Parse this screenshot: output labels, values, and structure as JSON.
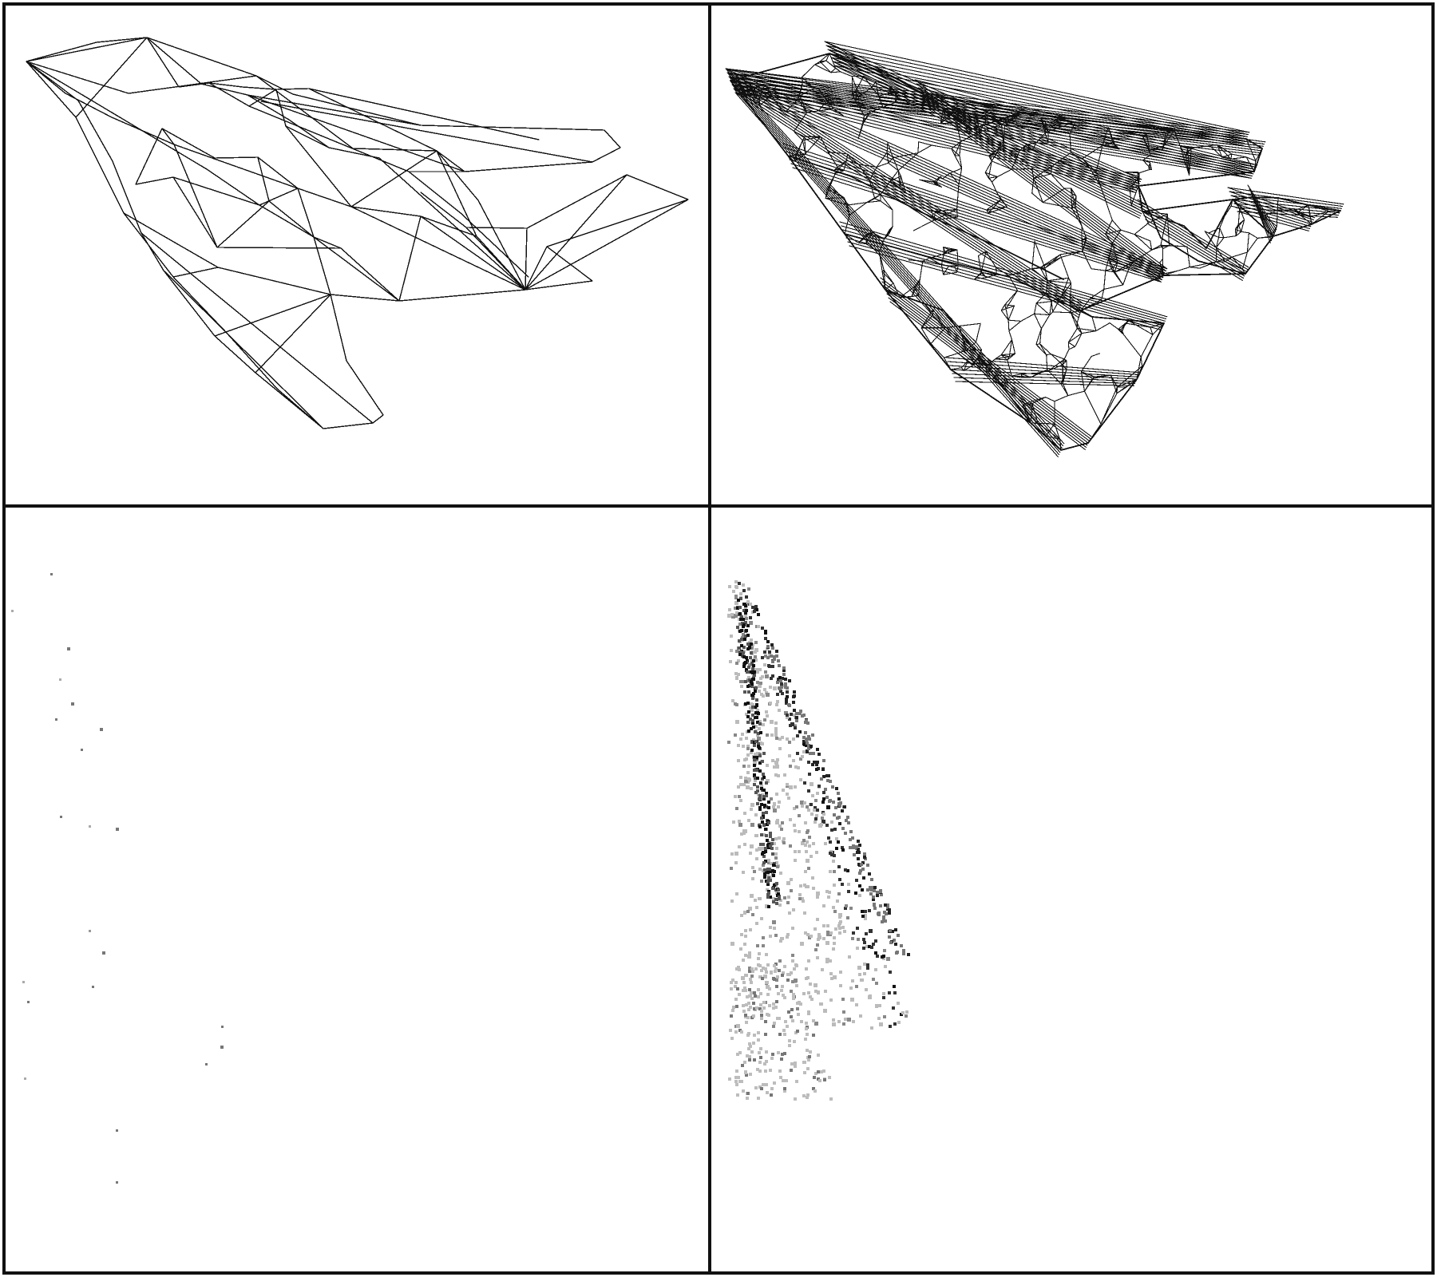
{
  "figure": {
    "panels": [
      {
        "kind": "coarse-wireframe-mesh"
      },
      {
        "kind": "dense-wireframe-mesh"
      },
      {
        "kind": "sparse-point-sampling"
      },
      {
        "kind": "dense-point-sampling"
      }
    ],
    "colors": {
      "background": "#ffffff",
      "ink": "#111111",
      "mid_gray": "#666666",
      "light_gray": "#b6b6b6"
    }
  }
}
